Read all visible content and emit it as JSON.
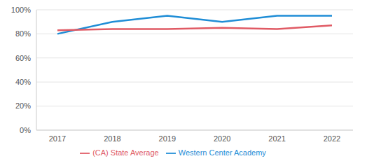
{
  "chart_data": {
    "type": "line",
    "categories": [
      "2017",
      "2018",
      "2019",
      "2020",
      "2021",
      "2022"
    ],
    "series": [
      {
        "name": "Western Center Academy",
        "color": "#1f8dd6",
        "values": [
          80,
          90,
          95,
          90,
          95,
          95
        ]
      },
      {
        "name": "(CA) State Average",
        "color": "#e05a64",
        "values": [
          83,
          84,
          84,
          85,
          84,
          87
        ]
      }
    ],
    "ylim": [
      0,
      100
    ],
    "yticks": [
      {
        "value": 0,
        "label": "0%"
      },
      {
        "value": 20,
        "label": "20%"
      },
      {
        "value": 40,
        "label": "40%"
      },
      {
        "value": 60,
        "label": "60%"
      },
      {
        "value": 80,
        "label": "80%"
      },
      {
        "value": 100,
        "label": "100%"
      }
    ],
    "grid": true,
    "legend": "bottom"
  }
}
